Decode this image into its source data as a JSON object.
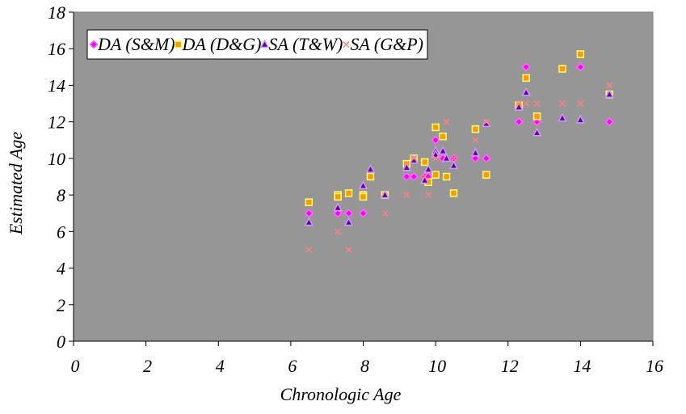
{
  "chart_data": {
    "type": "scatter",
    "title": "",
    "xlabel": "Chronologic Age",
    "ylabel": "Estimated Age",
    "xlim": [
      0,
      16
    ],
    "ylim": [
      0,
      18
    ],
    "xticks": [
      0,
      2,
      4,
      6,
      8,
      10,
      12,
      14,
      16
    ],
    "yticks": [
      0,
      2,
      4,
      6,
      8,
      10,
      12,
      14,
      16,
      18
    ],
    "grid": false,
    "plot_background": "#969696",
    "legend_position": "top-left",
    "series": [
      {
        "name": "DA (S&M)",
        "marker": "diamond",
        "color": "#ff00ff",
        "points": [
          [
            6.5,
            7.0
          ],
          [
            7.3,
            7.0
          ],
          [
            7.6,
            7.0
          ],
          [
            8.0,
            7.0
          ],
          [
            9.2,
            9.0
          ],
          [
            9.4,
            9.0
          ],
          [
            9.7,
            9.0
          ],
          [
            9.8,
            9.0
          ],
          [
            10.0,
            11.0
          ],
          [
            10.2,
            10.0
          ],
          [
            10.5,
            10.0
          ],
          [
            11.1,
            10.0
          ],
          [
            11.4,
            10.0
          ],
          [
            12.3,
            12.0
          ],
          [
            12.5,
            15.0
          ],
          [
            12.8,
            12.0
          ],
          [
            14.0,
            15.0
          ],
          [
            14.8,
            12.0
          ]
        ]
      },
      {
        "name": "DA (D&G)",
        "marker": "square",
        "color": "#ff9900",
        "edge_color": "#ffff66",
        "points": [
          [
            6.5,
            7.6
          ],
          [
            7.3,
            8.0
          ],
          [
            7.3,
            7.9
          ],
          [
            7.6,
            8.1
          ],
          [
            8.0,
            8.0
          ],
          [
            8.0,
            7.9
          ],
          [
            8.2,
            9.0
          ],
          [
            8.6,
            8.0
          ],
          [
            9.2,
            9.7
          ],
          [
            9.4,
            10.0
          ],
          [
            9.7,
            9.8
          ],
          [
            9.8,
            8.7
          ],
          [
            10.0,
            11.7
          ],
          [
            10.0,
            9.1
          ],
          [
            10.2,
            11.2
          ],
          [
            10.3,
            9.0
          ],
          [
            10.5,
            8.1
          ],
          [
            11.1,
            11.6
          ],
          [
            11.4,
            9.1
          ],
          [
            12.3,
            12.9
          ],
          [
            12.5,
            14.4
          ],
          [
            12.8,
            12.3
          ],
          [
            13.5,
            14.9
          ],
          [
            14.0,
            15.7
          ],
          [
            14.8,
            13.5
          ]
        ]
      },
      {
        "name": "SA (T&W)",
        "marker": "triangle",
        "color": "#660099",
        "edge_color": "#cc99ff",
        "points": [
          [
            6.5,
            6.5
          ],
          [
            7.3,
            7.3
          ],
          [
            7.6,
            6.5
          ],
          [
            8.0,
            8.5
          ],
          [
            8.2,
            9.4
          ],
          [
            8.6,
            8.0
          ],
          [
            9.2,
            9.5
          ],
          [
            9.4,
            9.9
          ],
          [
            9.7,
            8.8
          ],
          [
            9.8,
            9.4
          ],
          [
            10.0,
            10.4
          ],
          [
            10.0,
            10.2
          ],
          [
            10.2,
            10.4
          ],
          [
            10.3,
            10.0
          ],
          [
            10.5,
            9.6
          ],
          [
            11.1,
            10.3
          ],
          [
            11.4,
            11.9
          ],
          [
            12.3,
            12.8
          ],
          [
            12.5,
            13.6
          ],
          [
            12.8,
            11.4
          ],
          [
            13.5,
            12.2
          ],
          [
            14.0,
            12.1
          ],
          [
            14.8,
            13.5
          ]
        ]
      },
      {
        "name": "SA (G&P)",
        "marker": "x",
        "color": "#ff8080",
        "points": [
          [
            6.5,
            5.0
          ],
          [
            7.3,
            6.0
          ],
          [
            7.6,
            5.0
          ],
          [
            8.6,
            7.0
          ],
          [
            9.2,
            8.0
          ],
          [
            9.4,
            10.0
          ],
          [
            9.7,
            9.0
          ],
          [
            9.8,
            8.0
          ],
          [
            10.0,
            10.0
          ],
          [
            10.3,
            12.0
          ],
          [
            10.5,
            10.0
          ],
          [
            11.1,
            11.0
          ],
          [
            11.4,
            12.0
          ],
          [
            12.3,
            13.0
          ],
          [
            12.5,
            13.0
          ],
          [
            12.8,
            13.0
          ],
          [
            13.5,
            13.0
          ],
          [
            14.0,
            13.0
          ],
          [
            14.8,
            14.0
          ]
        ]
      }
    ]
  }
}
